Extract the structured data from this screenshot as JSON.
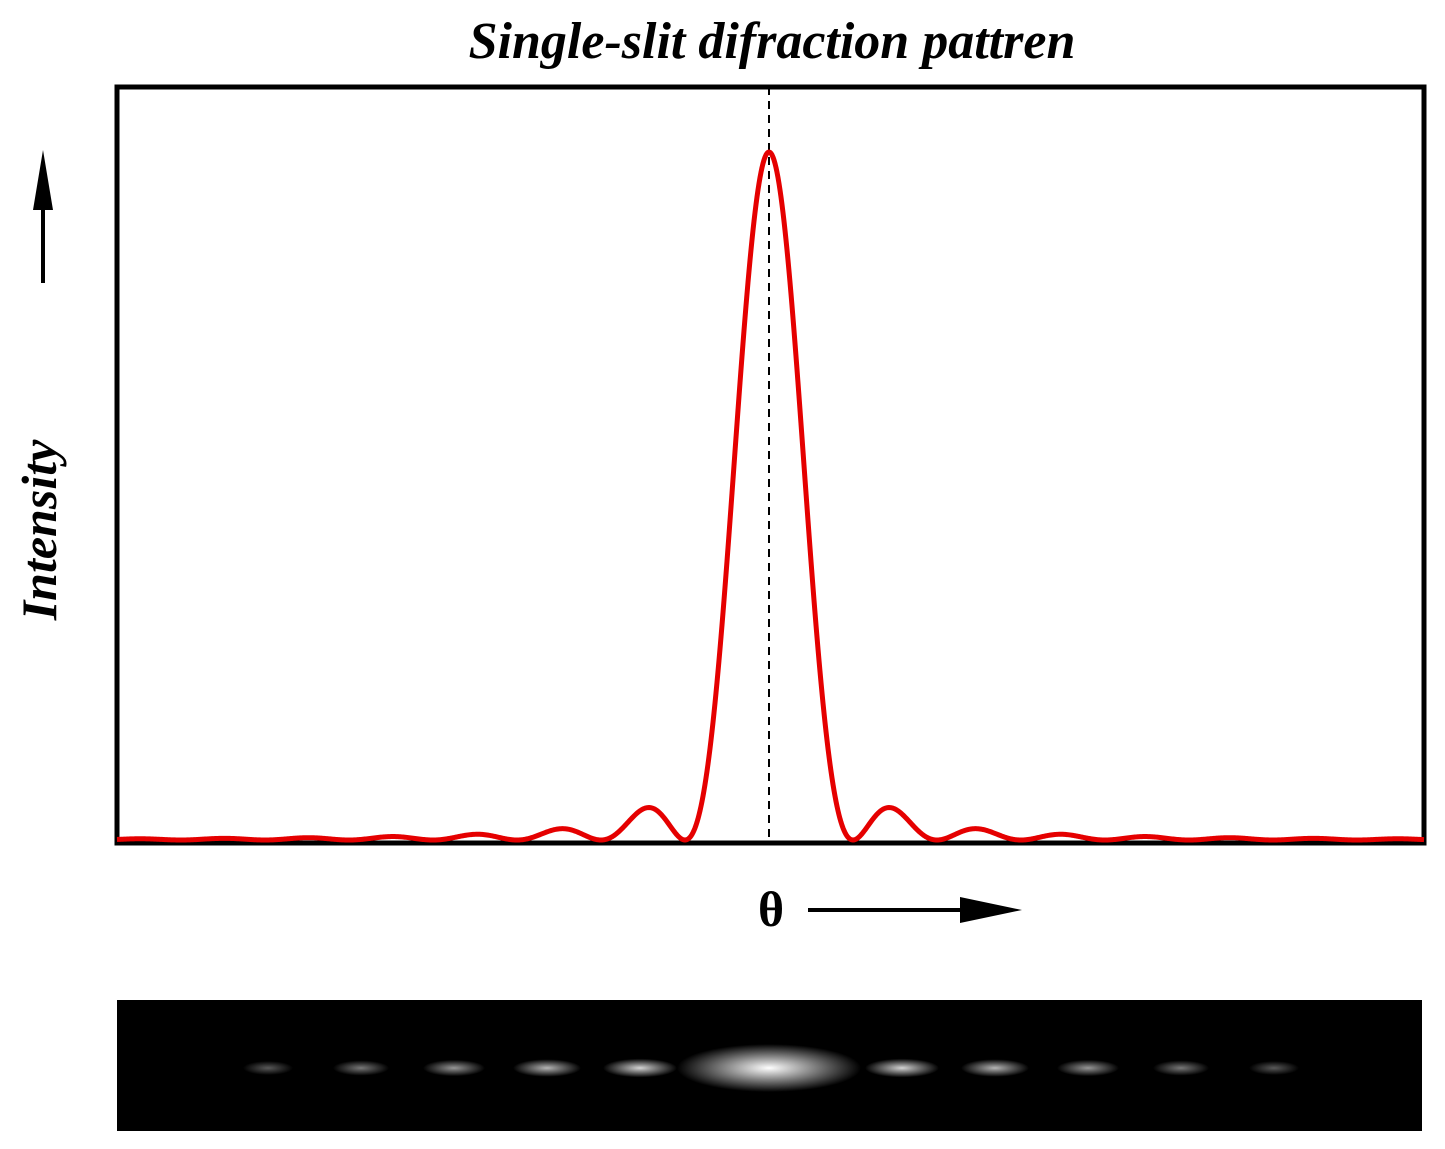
{
  "title": "Single-slit difraction pattren",
  "y_label": "Intensity",
  "x_label": "θ"
}
